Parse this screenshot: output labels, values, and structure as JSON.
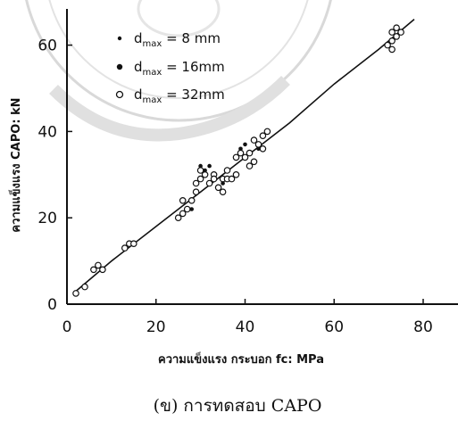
{
  "chart_data": {
    "type": "scatter",
    "xlabel": "ความแข็งแรง กระบอก fc: MPa",
    "ylabel": "ความแข็งแรง CAPO: kN",
    "xlim": [
      0,
      90
    ],
    "ylim": [
      0,
      70
    ],
    "xticks": [
      "0",
      "20",
      "40",
      "60",
      "80"
    ],
    "yticks": [
      "0",
      "20",
      "40",
      "60"
    ],
    "caption": "(ข) การทดสอบ CAPO",
    "legend_position": "top-left",
    "grid": false,
    "legend": [
      {
        "marker": "•",
        "label_prefix": "d",
        "label_sub": "max",
        "label_rest": " = 8 mm"
      },
      {
        "marker": "•",
        "label_prefix": "d",
        "label_sub": "max",
        "label_rest": " = 16mm"
      },
      {
        "marker": "o",
        "label_prefix": "d",
        "label_sub": "max",
        "label_rest": " = 32mm"
      }
    ],
    "fit_curve": {
      "x": [
        2,
        10,
        20,
        30,
        40,
        50,
        60,
        70,
        78
      ],
      "y": [
        3,
        10,
        18,
        26,
        34,
        42,
        51,
        59,
        66
      ]
    },
    "series": [
      {
        "marker": "circle-open",
        "points": [
          [
            2,
            2.5
          ],
          [
            4,
            4
          ],
          [
            6,
            8
          ],
          [
            7,
            9
          ],
          [
            8,
            8
          ],
          [
            13,
            13
          ],
          [
            14,
            14
          ],
          [
            15,
            14
          ],
          [
            25,
            20
          ],
          [
            26,
            21
          ],
          [
            27,
            22
          ],
          [
            26,
            24
          ],
          [
            28,
            24
          ],
          [
            29,
            26
          ],
          [
            29,
            28
          ],
          [
            30,
            29
          ],
          [
            31,
            30
          ],
          [
            30,
            31
          ],
          [
            32,
            28
          ],
          [
            33,
            30
          ],
          [
            33,
            29
          ],
          [
            34,
            27
          ],
          [
            35,
            29
          ],
          [
            35,
            26
          ],
          [
            36,
            29
          ],
          [
            36,
            31
          ],
          [
            37,
            29
          ],
          [
            38,
            30
          ],
          [
            38,
            34
          ],
          [
            39,
            35
          ],
          [
            40,
            34
          ],
          [
            41,
            35
          ],
          [
            41,
            32
          ],
          [
            42,
            33
          ],
          [
            42,
            38
          ],
          [
            43,
            37
          ],
          [
            44,
            39
          ],
          [
            45,
            40
          ],
          [
            44,
            36
          ],
          [
            72,
            60
          ],
          [
            73,
            61
          ],
          [
            73,
            63
          ],
          [
            74,
            62
          ],
          [
            74,
            64
          ],
          [
            75,
            63
          ],
          [
            73,
            59
          ]
        ]
      },
      {
        "marker": "dot",
        "points": [
          [
            28,
            22
          ],
          [
            30,
            32
          ],
          [
            31,
            31
          ],
          [
            32,
            32
          ],
          [
            35,
            28
          ],
          [
            39,
            36
          ],
          [
            40,
            37
          ],
          [
            43,
            36
          ]
        ]
      }
    ]
  }
}
